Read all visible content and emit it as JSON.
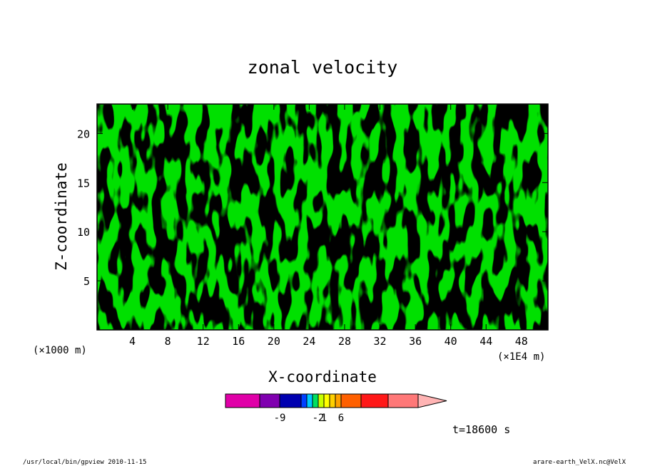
{
  "chart_data": {
    "type": "heatmap",
    "title": "zonal velocity",
    "xlabel": "X-coordinate",
    "ylabel": "Z-coordinate",
    "x_unit_left": "(×1000 m)",
    "x_unit_right": "(×1E4 m)",
    "x_ticks": [
      "4",
      "8",
      "12",
      "16",
      "20",
      "24",
      "28",
      "32",
      "36",
      "40",
      "44",
      "48"
    ],
    "y_ticks": [
      "5",
      "10",
      "15",
      "20"
    ],
    "xlim": [
      0,
      51
    ],
    "ylim": [
      0,
      23
    ],
    "time_label": "t=18600 s",
    "colorbar": {
      "colors": [
        "#e000a8",
        "#8000b0",
        "#0000b0",
        "#0040ff",
        "#00c8ff",
        "#00e060",
        "#c8ff00",
        "#ffff00",
        "#ffd000",
        "#ffa000",
        "#ff6000",
        "#ff1818",
        "#ff7878",
        "#ffb4b4"
      ],
      "labels": [
        "-9",
        "-2",
        "1",
        "6"
      ]
    },
    "field_colors": {
      "low": "#00e000",
      "high": "#ffff00"
    }
  },
  "footer": {
    "left": "/usr/local/bin/gpview   2010-11-15",
    "right": "arare-earth_VelX.nc@VelX"
  }
}
